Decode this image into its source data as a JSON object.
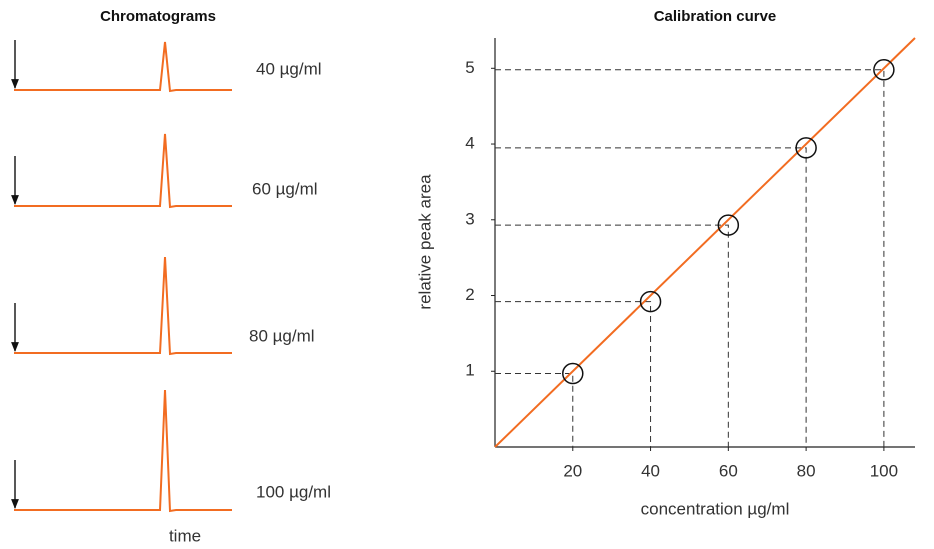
{
  "chart_data": [
    {
      "type": "chromatogram",
      "title": "Chromatograms",
      "labels": [
        "40 µg/ml",
        "60 µg/ml",
        "80 µg/ml",
        "100 µg/ml"
      ],
      "values": [
        2,
        3,
        4,
        5
      ],
      "x_label": "time",
      "color": "#f26c21"
    },
    {
      "type": "scatter",
      "title": "Calibration curve",
      "x_label": "concentration µg/ml",
      "y_label": "relative peak area",
      "x": [
        20,
        40,
        60,
        80,
        100
      ],
      "y": [
        0.97,
        1.92,
        2.93,
        3.95,
        4.98
      ],
      "xlim": [
        0,
        108
      ],
      "ylim": [
        0,
        5.4
      ],
      "xticks": [
        20,
        40,
        60,
        80,
        100
      ],
      "yticks": [
        1,
        2,
        3,
        4,
        5
      ],
      "fit_slope": 0.05,
      "color": "#f26c21"
    }
  ]
}
